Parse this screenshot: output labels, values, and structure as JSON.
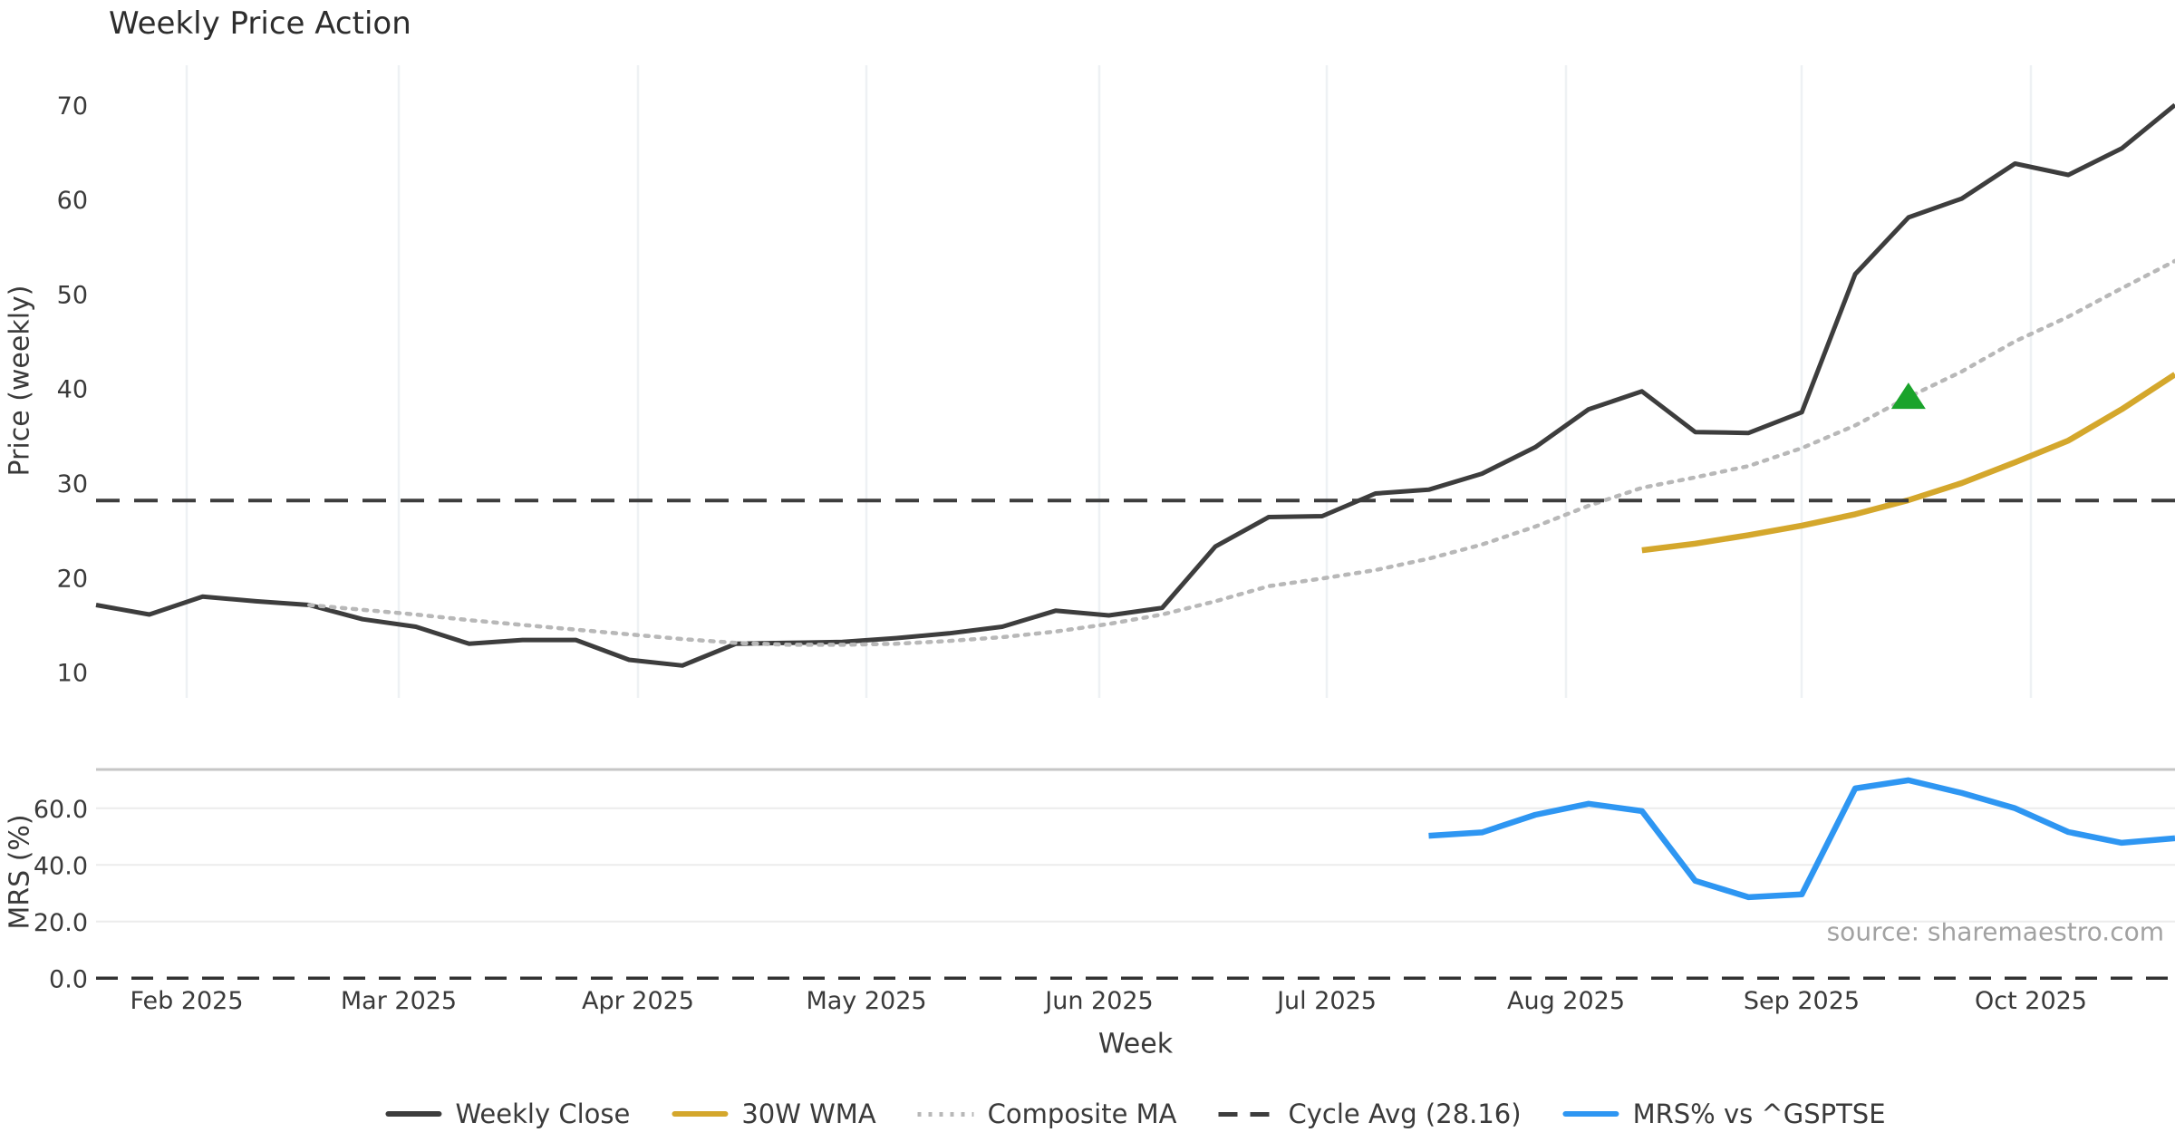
{
  "title": "Weekly Price Action",
  "source_note": "source: sharemaestro.com",
  "axes": {
    "price_ylabel": "Price (weekly)",
    "mrs_ylabel": "MRS (%)",
    "xlabel": "Week"
  },
  "chart_data": {
    "type": "line",
    "title": "Weekly Price Action",
    "xlabel": "Week",
    "x_tick_labels": [
      "Feb 2025",
      "Mar 2025",
      "Apr 2025",
      "May 2025",
      "Jun 2025",
      "Jul 2025",
      "Aug 2025",
      "Sep 2025",
      "Oct 2025"
    ],
    "weeks_total": 40,
    "panels": [
      {
        "id": "price",
        "ylabel": "Price (weekly)",
        "ylim": [
          8.5,
          74.5
        ],
        "yticks": [
          {
            "v": 70,
            "label": "70"
          },
          {
            "v": 60,
            "label": "60"
          },
          {
            "v": 50,
            "label": "50"
          },
          {
            "v": 40,
            "label": "40"
          },
          {
            "v": 30,
            "label": "30"
          },
          {
            "v": 20,
            "label": "20"
          },
          {
            "v": 10,
            "label": "10"
          }
        ],
        "grid": "vertical-months"
      },
      {
        "id": "mrs",
        "ylabel": "MRS (%)",
        "ylim": [
          0,
          73.7
        ],
        "yticks": [
          {
            "v": 60,
            "label": "60.0"
          },
          {
            "v": 40,
            "label": "40.0"
          },
          {
            "v": 20,
            "label": "20.0"
          },
          {
            "v": 0,
            "label": "0.0"
          }
        ],
        "grid": "horizontal"
      }
    ],
    "series": [
      {
        "name": "Weekly Close",
        "panel": "price",
        "style": "solid",
        "color": "#3d3d3d",
        "width": 5,
        "start_week": 1,
        "values": [
          17.1,
          16.1,
          18.0,
          17.5,
          17.1,
          15.6,
          14.8,
          13.0,
          13.4,
          13.4,
          11.3,
          10.7,
          13.0,
          13.1,
          13.2,
          13.6,
          14.1,
          14.8,
          16.5,
          16.0,
          16.8,
          23.3,
          26.4,
          26.5,
          28.9,
          29.3,
          31.0,
          33.8,
          37.8,
          39.7,
          35.4,
          35.3,
          37.5,
          52.1,
          58.1,
          60.1,
          63.8,
          62.6,
          65.4,
          70.0
        ]
      },
      {
        "name": "Composite MA",
        "panel": "price",
        "style": "dotted",
        "color": "#b8b8b8",
        "width": 4.5,
        "start_week": 5,
        "values": [
          17.1,
          16.6,
          16.1,
          15.5,
          15.0,
          14.5,
          14.0,
          13.5,
          13.1,
          12.9,
          12.9,
          13.0,
          13.3,
          13.7,
          14.3,
          15.1,
          16.1,
          17.5,
          19.1,
          19.9,
          20.8,
          22.0,
          23.5,
          25.4,
          27.6,
          29.5,
          30.6,
          31.8,
          33.7,
          36.1,
          39.1,
          41.8,
          45.0,
          47.6,
          50.6,
          53.5
        ]
      },
      {
        "name": "30W WMA",
        "panel": "price",
        "style": "solid",
        "color": "#d4a72c",
        "width": 6.5,
        "start_week": 30,
        "values": [
          22.9,
          23.6,
          24.5,
          25.5,
          26.7,
          28.2,
          30.0,
          32.2,
          34.5,
          37.8,
          41.5
        ]
      },
      {
        "name": "Cycle Avg",
        "panel": "price",
        "style": "dashed",
        "color": "#3d3d3d",
        "width": 4,
        "constant": 28.16
      },
      {
        "name": "MRS% vs ^GSPTSE",
        "panel": "mrs",
        "style": "solid",
        "color": "#2e96f2",
        "width": 6.5,
        "start_week": 26,
        "values": [
          50.3,
          51.5,
          57.7,
          61.6,
          59.0,
          34.4,
          28.6,
          29.6,
          67.0,
          69.9,
          65.4,
          60.0,
          51.6,
          47.8,
          49.4
        ]
      }
    ],
    "marker": {
      "type": "triangle-up",
      "panel": "price",
      "color": "#1aa32b",
      "week": 35,
      "value": 39.1
    },
    "mrs_zero_line": {
      "value": 0.0,
      "style": "dashed",
      "color": "#333333"
    },
    "colors": {
      "grid_vertical": "#eef1f4",
      "grid_horizontal": "#ececec",
      "mrs_top_border": "#c6c6c6"
    }
  },
  "legend": {
    "items": [
      {
        "label": "Weekly Close",
        "style": "solid",
        "color": "#3d3d3d"
      },
      {
        "label": "30W WMA",
        "style": "solid",
        "color": "#d4a72c"
      },
      {
        "label": "Composite MA",
        "style": "dotted",
        "color": "#b8b8b8"
      },
      {
        "label": "Cycle Avg (28.16)",
        "style": "dashed",
        "color": "#3d3d3d"
      },
      {
        "label": "MRS% vs ^GSPTSE",
        "style": "solid",
        "color": "#2e96f2"
      }
    ]
  }
}
